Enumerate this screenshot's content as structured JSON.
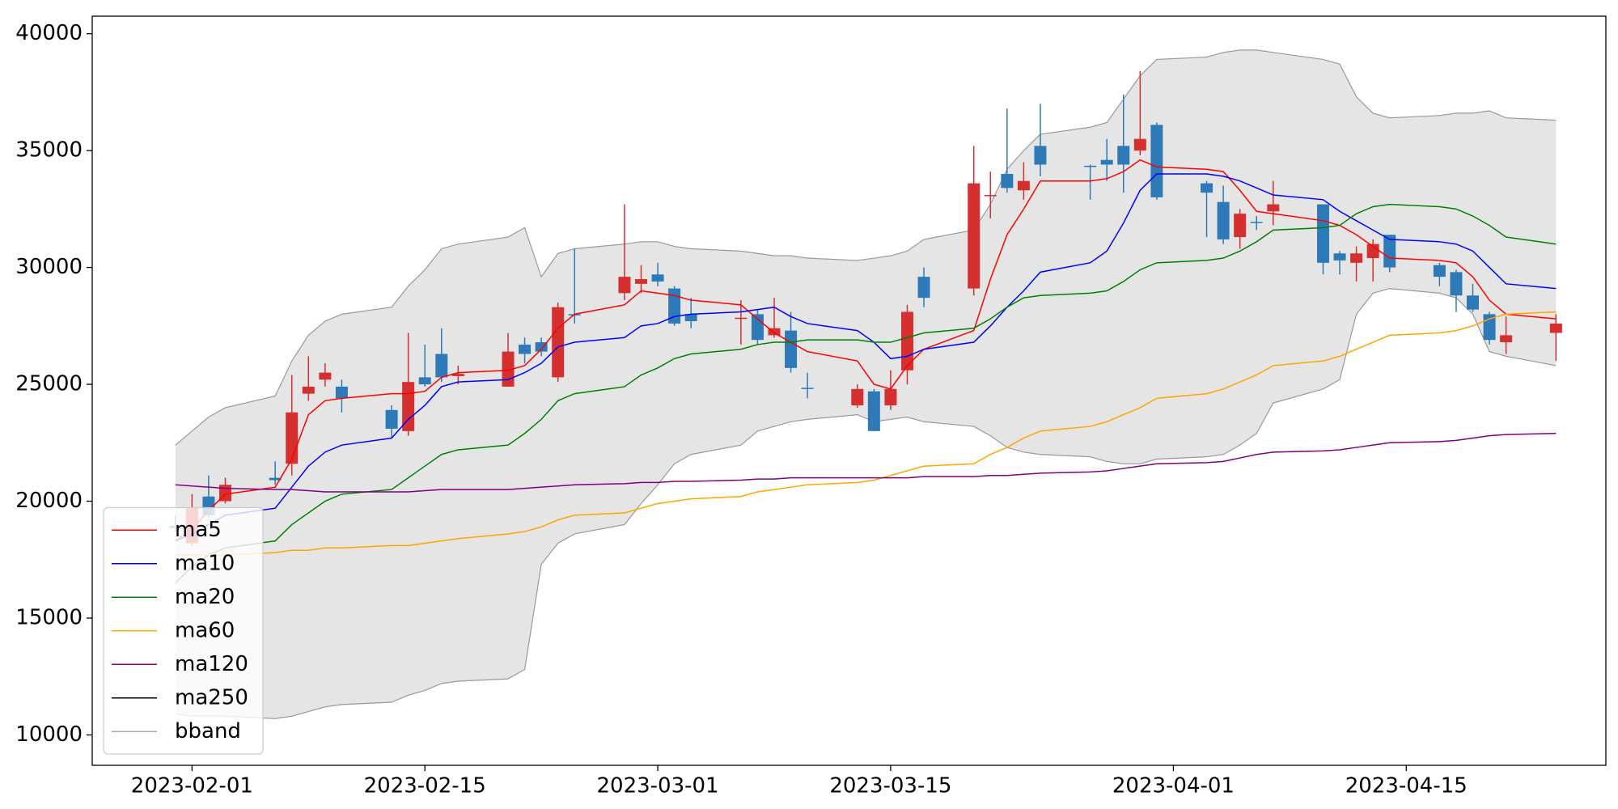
{
  "chart_data": {
    "type": "candlestick",
    "x": [
      "2023-01-31",
      "2023-02-01",
      "2023-02-02",
      "2023-02-03",
      "2023-02-06",
      "2023-02-07",
      "2023-02-08",
      "2023-02-09",
      "2023-02-10",
      "2023-02-13",
      "2023-02-14",
      "2023-02-15",
      "2023-02-16",
      "2023-02-17",
      "2023-02-20",
      "2023-02-21",
      "2023-02-22",
      "2023-02-23",
      "2023-02-24",
      "2023-02-27",
      "2023-02-28",
      "2023-03-01",
      "2023-03-02",
      "2023-03-03",
      "2023-03-06",
      "2023-03-07",
      "2023-03-08",
      "2023-03-09",
      "2023-03-10",
      "2023-03-13",
      "2023-03-14",
      "2023-03-15",
      "2023-03-16",
      "2023-03-17",
      "2023-03-20",
      "2023-03-21",
      "2023-03-22",
      "2023-03-23",
      "2023-03-24",
      "2023-03-27",
      "2023-03-28",
      "2023-03-29",
      "2023-03-30",
      "2023-03-31",
      "2023-04-03",
      "2023-04-04",
      "2023-04-05",
      "2023-04-06",
      "2023-04-07",
      "2023-04-10",
      "2023-04-11",
      "2023-04-12",
      "2023-04-13",
      "2023-04-14",
      "2023-04-17",
      "2023-04-18",
      "2023-04-19",
      "2023-04-20",
      "2023-04-21",
      "2023-04-24"
    ],
    "open": [
      18950,
      18200,
      20200,
      20000,
      21000,
      21600,
      24600,
      25200,
      24900,
      23900,
      23000,
      25300,
      26300,
      25350,
      24900,
      26700,
      26800,
      25300,
      28000,
      28900,
      29300,
      29700,
      29100,
      28000,
      27800,
      28000,
      27100,
      27300,
      24850,
      24100,
      24700,
      24100,
      25600,
      29600,
      29100,
      33050,
      34000,
      33300,
      35200,
      34350,
      34600,
      35200,
      35000,
      36100,
      33600,
      32800,
      31300,
      31950,
      32400,
      32700,
      30600,
      30200,
      30400,
      31400,
      30100,
      29800,
      28800,
      28000,
      26800,
      27200
    ],
    "high": [
      19400,
      20300,
      21100,
      21000,
      21700,
      25400,
      26200,
      25900,
      25200,
      24100,
      27200,
      26700,
      27400,
      25800,
      27200,
      27000,
      27000,
      28500,
      30800,
      32700,
      30100,
      30200,
      29200,
      28700,
      28600,
      28200,
      28700,
      28100,
      25500,
      25000,
      24800,
      25600,
      28400,
      30000,
      35200,
      34100,
      36800,
      34500,
      37000,
      34400,
      35500,
      37400,
      38400,
      36200,
      33700,
      33500,
      32500,
      32200,
      33700,
      32700,
      30700,
      30900,
      31200,
      31400,
      30200,
      29900,
      29300,
      28100,
      27900,
      28000
    ],
    "low": [
      18700,
      18100,
      19300,
      19900,
      20700,
      21100,
      24300,
      24900,
      23800,
      22700,
      22800,
      24900,
      25100,
      25000,
      24900,
      25900,
      26200,
      25100,
      27600,
      28600,
      28900,
      29200,
      27500,
      27400,
      26700,
      26700,
      27000,
      25500,
      24400,
      24000,
      23000,
      23900,
      25000,
      28300,
      28800,
      32100,
      33200,
      32900,
      33900,
      32900,
      33700,
      33200,
      34800,
      32900,
      31300,
      31000,
      30800,
      31600,
      31800,
      29700,
      29700,
      29400,
      29400,
      29800,
      29200,
      28100,
      28100,
      26700,
      26300,
      26000
    ],
    "close": [
      18850,
      19700,
      19400,
      20700,
      20900,
      23800,
      24900,
      25500,
      24400,
      23100,
      25100,
      25000,
      25300,
      25450,
      26400,
      26300,
      26400,
      28300,
      27950,
      29600,
      29500,
      29400,
      27600,
      27700,
      27850,
      26900,
      27400,
      25700,
      24800,
      24800,
      23000,
      24800,
      28100,
      28700,
      33600,
      33100,
      33400,
      33700,
      34400,
      34300,
      34400,
      34400,
      35500,
      33000,
      33200,
      31200,
      32300,
      31900,
      32700,
      30200,
      30300,
      30600,
      31000,
      30000,
      29600,
      28800,
      28200,
      26900,
      27100,
      27600
    ],
    "up_color": "#d62f2f",
    "down_color": "#2e7ab8",
    "series": [
      {
        "name": "ma5",
        "color": "#ff0000",
        "values": [
          18300,
          18800,
          19600,
          20300,
          20600,
          21800,
          23700,
          24300,
          24400,
          24600,
          24600,
          24700,
          25300,
          25500,
          25600,
          25800,
          26500,
          27400,
          28000,
          28400,
          29000,
          28900,
          28800,
          28600,
          28400,
          27800,
          27200,
          26800,
          26400,
          26000,
          25000,
          24800,
          25800,
          26500,
          27300,
          29500,
          31400,
          32500,
          33700,
          33700,
          33800,
          34100,
          34600,
          34300,
          34200,
          34100,
          33300,
          32400,
          32300,
          32000,
          31800,
          31400,
          30900,
          30400,
          30300,
          30200,
          29600,
          28600,
          28000,
          27800
        ]
      },
      {
        "name": "ma10",
        "color": "#0000ff",
        "values": [
          18300,
          18600,
          19000,
          19400,
          19700,
          20600,
          21500,
          22100,
          22400,
          22700,
          23500,
          24100,
          24900,
          25100,
          25200,
          25500,
          25900,
          26600,
          26800,
          27000,
          27500,
          27600,
          27900,
          28000,
          28100,
          28200,
          28300,
          27900,
          27600,
          27300,
          26800,
          26100,
          26200,
          26500,
          26800,
          27500,
          28300,
          29000,
          29800,
          30200,
          30700,
          31900,
          33300,
          34000,
          34000,
          33900,
          33700,
          33400,
          33100,
          32900,
          32400,
          32000,
          31600,
          31200,
          31100,
          31000,
          30700,
          30000,
          29300,
          29100
        ]
      },
      {
        "name": "ma20",
        "color": "#008000",
        "values": [
          16500,
          17200,
          17700,
          18000,
          18300,
          19000,
          19500,
          20000,
          20300,
          20500,
          21000,
          21500,
          22000,
          22200,
          22400,
          22900,
          23500,
          24300,
          24600,
          24900,
          25400,
          25700,
          26100,
          26300,
          26500,
          26700,
          26800,
          26800,
          26900,
          26900,
          26800,
          26800,
          27000,
          27200,
          27400,
          27800,
          28300,
          28700,
          28800,
          28900,
          29000,
          29400,
          29900,
          30200,
          30300,
          30400,
          30700,
          31100,
          31600,
          31700,
          31800,
          32300,
          32600,
          32700,
          32600,
          32500,
          32200,
          31800,
          31300,
          31000
        ]
      },
      {
        "name": "ma60",
        "color": "#ffa500",
        "values": [
          17700,
          17700,
          17700,
          17700,
          17800,
          17900,
          17900,
          18000,
          18000,
          18100,
          18100,
          18200,
          18300,
          18400,
          18600,
          18700,
          18900,
          19200,
          19400,
          19500,
          19700,
          19900,
          20000,
          20100,
          20200,
          20400,
          20500,
          20600,
          20700,
          20800,
          20900,
          21100,
          21300,
          21500,
          21600,
          22000,
          22300,
          22700,
          23000,
          23200,
          23400,
          23700,
          24000,
          24400,
          24600,
          24800,
          25100,
          25400,
          25800,
          26000,
          26200,
          26500,
          26800,
          27100,
          27200,
          27300,
          27500,
          27800,
          28000,
          28100
        ]
      },
      {
        "name": "ma120",
        "color": "#800080",
        "values": [
          20700,
          20650,
          20600,
          20550,
          20500,
          20500,
          20450,
          20400,
          20400,
          20400,
          20400,
          20450,
          20500,
          20500,
          20500,
          20550,
          20600,
          20650,
          20700,
          20750,
          20800,
          20800,
          20850,
          20850,
          20900,
          20950,
          20950,
          21000,
          21000,
          21000,
          21000,
          21000,
          21000,
          21050,
          21050,
          21100,
          21100,
          21150,
          21200,
          21250,
          21300,
          21400,
          21500,
          21600,
          21650,
          21700,
          21850,
          22000,
          22100,
          22150,
          22200,
          22300,
          22400,
          22500,
          22550,
          22600,
          22700,
          22800,
          22850,
          22900
        ]
      },
      {
        "name": "ma250",
        "color": "#000000",
        "values": [
          null,
          null,
          null,
          null,
          null,
          null,
          null,
          null,
          null,
          null,
          null,
          null,
          null,
          null,
          null,
          null,
          null,
          null,
          null,
          null,
          null,
          null,
          null,
          null,
          null,
          null,
          null,
          null,
          null,
          null,
          null,
          null,
          null,
          null,
          null,
          null,
          null,
          null,
          null,
          null,
          null,
          null,
          null,
          null,
          null,
          null,
          null,
          null,
          null,
          null,
          null,
          null,
          null,
          null,
          null,
          null,
          null,
          null,
          null,
          null
        ]
      }
    ],
    "bband": {
      "name": "bband",
      "color": "#999999",
      "fill": "#e5e5e5",
      "upper": [
        22400,
        23000,
        23600,
        24000,
        24500,
        26000,
        27100,
        27700,
        28000,
        28300,
        29200,
        29900,
        30800,
        31000,
        31300,
        31700,
        29600,
        30600,
        30800,
        31000,
        31100,
        31100,
        30900,
        30800,
        30700,
        30600,
        30500,
        30500,
        30400,
        30300,
        30400,
        30500,
        30700,
        31200,
        31600,
        32700,
        34200,
        35000,
        35700,
        36000,
        36200,
        37200,
        38200,
        38900,
        39000,
        39200,
        39300,
        39300,
        39200,
        38900,
        38700,
        37300,
        36600,
        36400,
        36500,
        36600,
        36600,
        36700,
        36400,
        36300
      ],
      "lower": [
        10900,
        10800,
        10800,
        10800,
        10700,
        10800,
        11000,
        11200,
        11300,
        11400,
        11700,
        11900,
        12200,
        12300,
        12400,
        12800,
        17300,
        18200,
        18600,
        19000,
        19900,
        20700,
        21600,
        22000,
        22400,
        23000,
        23200,
        23400,
        23500,
        23700,
        23400,
        23500,
        23600,
        23400,
        23200,
        22800,
        22300,
        22100,
        22000,
        21900,
        21700,
        21600,
        21600,
        21800,
        21900,
        22000,
        22400,
        22900,
        24200,
        24800,
        25200,
        28000,
        28900,
        29100,
        28900,
        28700,
        28000,
        26400,
        26200,
        25800
      ]
    },
    "xlim": [
      "2023-01-26",
      "2023-04-27"
    ],
    "xticks": [
      "2023-02-01",
      "2023-02-15",
      "2023-03-01",
      "2023-03-15",
      "2023-04-01",
      "2023-04-15"
    ],
    "ylim": [
      8700,
      40750
    ],
    "yticks": [
      10000,
      15000,
      20000,
      25000,
      30000,
      35000,
      40000
    ],
    "legend": "lower left"
  }
}
